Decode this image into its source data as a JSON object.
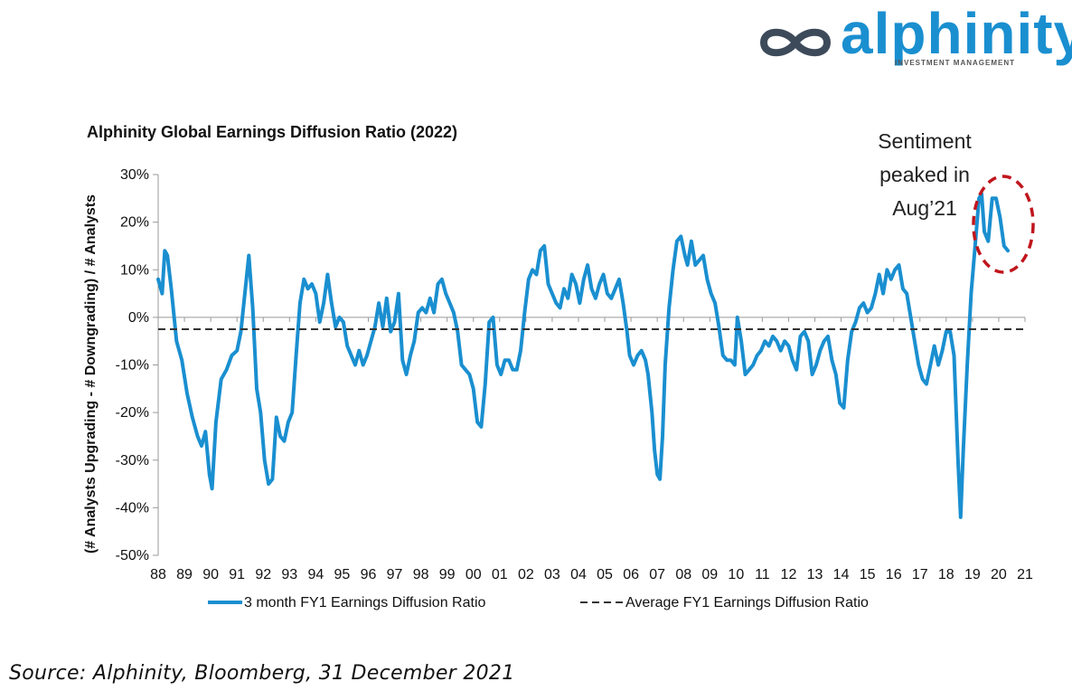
{
  "branding": {
    "logo_text": "alphinity",
    "logo_subtext": "INVESTMENT MANAGEMENT",
    "brand_color": "#1a8fd0"
  },
  "annotation": {
    "text": [
      "Sentiment",
      "peaked in",
      "Aug’21"
    ],
    "circle_color": "#c0161d"
  },
  "source_note": "Source:  Alphinity, Bloomberg, 31 December 2021",
  "chart_data": {
    "type": "line",
    "title": "Alphinity Global Earnings Diffusion Ratio (2022)",
    "ylabel": "(# Analysts Upgrading - # Downgrading) / #  Analysts",
    "xlabel": "",
    "ylim": [
      -50,
      30
    ],
    "yticks": [
      30,
      20,
      10,
      0,
      -10,
      -20,
      -30,
      -40,
      -50
    ],
    "ytick_labels": [
      "30%",
      "20%",
      "10%",
      "0%",
      "-10%",
      "-20%",
      "-30%",
      "-40%",
      "-50%"
    ],
    "xlim": [
      1988,
      2021
    ],
    "xticks": [
      1988,
      1989,
      1990,
      1991,
      1992,
      1993,
      1994,
      1995,
      1996,
      1997,
      1998,
      1999,
      2000,
      2001,
      2002,
      2003,
      2004,
      2005,
      2006,
      2007,
      2008,
      2009,
      2010,
      2011,
      2012,
      2013,
      2014,
      2015,
      2016,
      2017,
      2018,
      2019,
      2020,
      2021
    ],
    "xtick_labels": [
      "88",
      "89",
      "90",
      "91",
      "92",
      "93",
      "94",
      "95",
      "96",
      "97",
      "98",
      "99",
      "00",
      "01",
      "02",
      "03",
      "04",
      "05",
      "06",
      "07",
      "08",
      "09",
      "10",
      "11",
      "12",
      "13",
      "14",
      "15",
      "16",
      "17",
      "18",
      "19",
      "20",
      "21"
    ],
    "grid": false,
    "legend": "bottom",
    "series": [
      {
        "name": "3 month FY1 Earnings Diffusion Ratio",
        "color": "#1a8fd0",
        "style": "solid",
        "points": [
          [
            1988.0,
            8
          ],
          [
            1988.15,
            5
          ],
          [
            1988.25,
            14
          ],
          [
            1988.35,
            13
          ],
          [
            1988.5,
            6
          ],
          [
            1988.7,
            -5
          ],
          [
            1988.9,
            -9
          ],
          [
            1989.1,
            -16
          ],
          [
            1989.3,
            -21
          ],
          [
            1989.5,
            -25
          ],
          [
            1989.65,
            -27
          ],
          [
            1989.8,
            -24
          ],
          [
            1989.95,
            -33
          ],
          [
            1990.05,
            -36
          ],
          [
            1990.2,
            -22
          ],
          [
            1990.4,
            -13
          ],
          [
            1990.6,
            -11
          ],
          [
            1990.8,
            -8
          ],
          [
            1991.0,
            -7
          ],
          [
            1991.15,
            -3
          ],
          [
            1991.3,
            5
          ],
          [
            1991.45,
            13
          ],
          [
            1991.6,
            2
          ],
          [
            1991.75,
            -15
          ],
          [
            1991.9,
            -20
          ],
          [
            1992.05,
            -30
          ],
          [
            1992.2,
            -35
          ],
          [
            1992.35,
            -34
          ],
          [
            1992.5,
            -21
          ],
          [
            1992.65,
            -25
          ],
          [
            1992.8,
            -26
          ],
          [
            1992.95,
            -22
          ],
          [
            1993.1,
            -20
          ],
          [
            1993.25,
            -8
          ],
          [
            1993.4,
            3
          ],
          [
            1993.55,
            8
          ],
          [
            1993.7,
            6
          ],
          [
            1993.85,
            7
          ],
          [
            1994.0,
            5
          ],
          [
            1994.15,
            -1
          ],
          [
            1994.3,
            3
          ],
          [
            1994.45,
            9
          ],
          [
            1994.6,
            3
          ],
          [
            1994.75,
            -2
          ],
          [
            1994.9,
            0
          ],
          [
            1995.05,
            -1
          ],
          [
            1995.2,
            -6
          ],
          [
            1995.35,
            -8
          ],
          [
            1995.5,
            -10
          ],
          [
            1995.65,
            -7
          ],
          [
            1995.8,
            -10
          ],
          [
            1995.95,
            -8
          ],
          [
            1996.1,
            -5
          ],
          [
            1996.25,
            -2
          ],
          [
            1996.4,
            3
          ],
          [
            1996.55,
            -2
          ],
          [
            1996.7,
            4
          ],
          [
            1996.85,
            -3
          ],
          [
            1997.0,
            -1
          ],
          [
            1997.15,
            5
          ],
          [
            1997.3,
            -9
          ],
          [
            1997.45,
            -12
          ],
          [
            1997.6,
            -8
          ],
          [
            1997.75,
            -5
          ],
          [
            1997.9,
            1
          ],
          [
            1998.05,
            2
          ],
          [
            1998.2,
            1
          ],
          [
            1998.35,
            4
          ],
          [
            1998.5,
            1
          ],
          [
            1998.65,
            7
          ],
          [
            1998.8,
            8
          ],
          [
            1998.95,
            5
          ],
          [
            1999.1,
            3
          ],
          [
            1999.25,
            1
          ],
          [
            1999.4,
            -3
          ],
          [
            1999.55,
            -10
          ],
          [
            1999.7,
            -11
          ],
          [
            1999.85,
            -12
          ],
          [
            2000.0,
            -15
          ],
          [
            2000.15,
            -22
          ],
          [
            2000.3,
            -23
          ],
          [
            2000.45,
            -14
          ],
          [
            2000.6,
            -1
          ],
          [
            2000.75,
            0
          ],
          [
            2000.9,
            -10
          ],
          [
            2001.05,
            -12
          ],
          [
            2001.2,
            -9
          ],
          [
            2001.35,
            -9
          ],
          [
            2001.5,
            -11
          ],
          [
            2001.65,
            -11
          ],
          [
            2001.8,
            -7
          ],
          [
            2001.95,
            1
          ],
          [
            2002.1,
            8
          ],
          [
            2002.25,
            10
          ],
          [
            2002.4,
            9
          ],
          [
            2002.55,
            14
          ],
          [
            2002.7,
            15
          ],
          [
            2002.85,
            7
          ],
          [
            2003.0,
            5
          ],
          [
            2003.15,
            3
          ],
          [
            2003.3,
            2
          ],
          [
            2003.45,
            6
          ],
          [
            2003.6,
            4
          ],
          [
            2003.75,
            9
          ],
          [
            2003.9,
            7
          ],
          [
            2004.05,
            3
          ],
          [
            2004.2,
            8
          ],
          [
            2004.35,
            11
          ],
          [
            2004.5,
            6
          ],
          [
            2004.65,
            4
          ],
          [
            2004.8,
            7
          ],
          [
            2004.95,
            9
          ],
          [
            2005.1,
            5
          ],
          [
            2005.25,
            4
          ],
          [
            2005.4,
            6
          ],
          [
            2005.55,
            8
          ],
          [
            2005.7,
            3
          ],
          [
            2005.85,
            -3
          ],
          [
            2005.95,
            -8
          ],
          [
            2006.1,
            -10
          ],
          [
            2006.25,
            -8
          ],
          [
            2006.4,
            -7
          ],
          [
            2006.55,
            -9
          ],
          [
            2006.65,
            -12
          ],
          [
            2006.8,
            -20
          ],
          [
            2006.9,
            -28
          ],
          [
            2007.0,
            -33
          ],
          [
            2007.1,
            -34
          ],
          [
            2007.2,
            -25
          ],
          [
            2007.3,
            -10
          ],
          [
            2007.45,
            2
          ],
          [
            2007.6,
            10
          ],
          [
            2007.75,
            16
          ],
          [
            2007.9,
            17
          ],
          [
            2008.05,
            13
          ],
          [
            2008.15,
            11
          ],
          [
            2008.3,
            16
          ],
          [
            2008.45,
            11
          ],
          [
            2008.6,
            12
          ],
          [
            2008.75,
            13
          ],
          [
            2008.9,
            8
          ],
          [
            2009.05,
            5
          ],
          [
            2009.2,
            3
          ],
          [
            2009.35,
            -2
          ],
          [
            2009.5,
            -8
          ],
          [
            2009.65,
            -9
          ],
          [
            2009.8,
            -9
          ],
          [
            2009.95,
            -10
          ],
          [
            2010.05,
            0
          ],
          [
            2010.2,
            -5
          ],
          [
            2010.35,
            -12
          ],
          [
            2010.5,
            -11
          ],
          [
            2010.65,
            -10
          ],
          [
            2010.8,
            -8
          ],
          [
            2010.95,
            -7
          ],
          [
            2011.1,
            -5
          ],
          [
            2011.25,
            -6
          ],
          [
            2011.4,
            -4
          ],
          [
            2011.55,
            -5
          ],
          [
            2011.7,
            -7
          ],
          [
            2011.85,
            -5
          ],
          [
            2012.0,
            -6
          ],
          [
            2012.15,
            -9
          ],
          [
            2012.3,
            -11
          ],
          [
            2012.45,
            -4
          ],
          [
            2012.6,
            -3
          ],
          [
            2012.75,
            -5
          ],
          [
            2012.9,
            -12
          ],
          [
            2013.05,
            -10
          ],
          [
            2013.2,
            -7
          ],
          [
            2013.35,
            -5
          ],
          [
            2013.5,
            -4
          ],
          [
            2013.65,
            -9
          ],
          [
            2013.8,
            -12
          ],
          [
            2013.95,
            -18
          ],
          [
            2014.1,
            -19
          ],
          [
            2014.25,
            -9
          ],
          [
            2014.4,
            -3
          ],
          [
            2014.55,
            -1
          ],
          [
            2014.7,
            2
          ],
          [
            2014.85,
            3
          ],
          [
            2015.0,
            1
          ],
          [
            2015.15,
            2
          ],
          [
            2015.3,
            5
          ],
          [
            2015.45,
            9
          ],
          [
            2015.6,
            5
          ],
          [
            2015.75,
            10
          ],
          [
            2015.9,
            8
          ],
          [
            2016.05,
            10
          ],
          [
            2016.2,
            11
          ],
          [
            2016.35,
            6
          ],
          [
            2016.5,
            5
          ],
          [
            2016.65,
            0
          ],
          [
            2016.8,
            -5
          ],
          [
            2016.95,
            -10
          ],
          [
            2017.1,
            -13
          ],
          [
            2017.25,
            -14
          ],
          [
            2017.4,
            -10
          ],
          [
            2017.55,
            -6
          ],
          [
            2017.7,
            -10
          ],
          [
            2017.85,
            -7
          ],
          [
            2018.0,
            -3
          ],
          [
            2018.15,
            -3
          ],
          [
            2018.3,
            -8
          ],
          [
            2018.45,
            -30
          ],
          [
            2018.55,
            -42
          ],
          [
            2018.65,
            -28
          ],
          [
            2018.8,
            -10
          ],
          [
            2018.95,
            5
          ],
          [
            2019.1,
            15
          ],
          [
            2019.25,
            25
          ],
          [
            2019.35,
            26
          ],
          [
            2019.45,
            18
          ],
          [
            2019.6,
            16
          ],
          [
            2019.75,
            25
          ],
          [
            2019.9,
            25
          ],
          [
            2020.05,
            21
          ],
          [
            2020.2,
            15
          ],
          [
            2020.35,
            14
          ]
        ]
      },
      {
        "name": "Average FY1 Earnings Diffusion Ratio",
        "color": "#333333",
        "style": "dashed",
        "value": -2.5
      }
    ]
  }
}
